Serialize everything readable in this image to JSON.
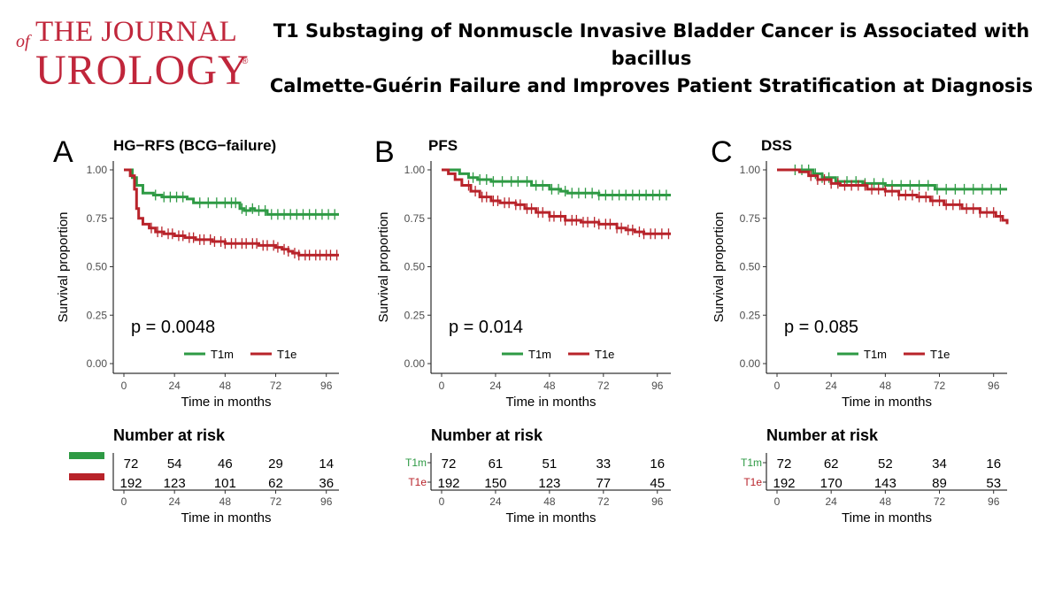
{
  "header": {
    "logo_of": "of",
    "logo_the_journal": "THE JOURNAL",
    "logo_urology": "UROLOGY",
    "logo_reg": "®",
    "title_line1": "T1 Substaging of Nonmuscle Invasive Bladder Cancer is Associated with bacillus",
    "title_line2": "Calmette-Guérin Failure and Improves Patient Stratification at Diagnosis"
  },
  "colors": {
    "T1m": "#2e9a44",
    "T1e": "#b8232a",
    "brand": "#c0263b"
  },
  "chart_data": [
    {
      "type": "line",
      "panel": "A",
      "title": "HG−RFS (BCG−failure)",
      "xlabel": "Time in months",
      "ylabel": "Survival proportion",
      "xlim": [
        0,
        102
      ],
      "ylim": [
        0,
        1
      ],
      "x_ticks": [
        0,
        24,
        48,
        72,
        96
      ],
      "y_ticks": [
        0.0,
        0.25,
        0.5,
        0.75,
        1.0
      ],
      "y_tick_labels": [
        "0.00",
        "0.25",
        "0.50",
        "0.75",
        "1.00"
      ],
      "pvalue": "p = 0.0048",
      "legend": [
        "T1m",
        "T1e"
      ],
      "series": [
        {
          "name": "T1m",
          "steps": [
            [
              0,
              1.0
            ],
            [
              4,
              0.96
            ],
            [
              6,
              0.92
            ],
            [
              9,
              0.88
            ],
            [
              14,
              0.87
            ],
            [
              18,
              0.86
            ],
            [
              30,
              0.85
            ],
            [
              33,
              0.83
            ],
            [
              55,
              0.8
            ],
            [
              57,
              0.79
            ],
            [
              60,
              0.8
            ],
            [
              62,
              0.79
            ],
            [
              68,
              0.77
            ],
            [
              102,
              0.77
            ]
          ],
          "censor_x": [
            15,
            19,
            22,
            25,
            28,
            36,
            40,
            44,
            48,
            51,
            53,
            56,
            58,
            61,
            64,
            67,
            70,
            73,
            76,
            79,
            82,
            85,
            88,
            91,
            94,
            97,
            100
          ]
        },
        {
          "name": "T1e",
          "steps": [
            [
              0,
              1.0
            ],
            [
              3,
              0.97
            ],
            [
              5,
              0.9
            ],
            [
              6,
              0.8
            ],
            [
              7,
              0.75
            ],
            [
              9,
              0.72
            ],
            [
              12,
              0.7
            ],
            [
              15,
              0.68
            ],
            [
              19,
              0.67
            ],
            [
              24,
              0.66
            ],
            [
              29,
              0.65
            ],
            [
              34,
              0.64
            ],
            [
              42,
              0.63
            ],
            [
              48,
              0.62
            ],
            [
              56,
              0.62
            ],
            [
              64,
              0.61
            ],
            [
              72,
              0.6
            ],
            [
              75,
              0.59
            ],
            [
              78,
              0.58
            ],
            [
              80,
              0.57
            ],
            [
              83,
              0.56
            ],
            [
              102,
              0.56
            ]
          ],
          "censor_x": [
            13,
            16,
            18,
            21,
            23,
            26,
            28,
            31,
            33,
            36,
            38,
            41,
            43,
            46,
            48,
            51,
            53,
            56,
            58,
            61,
            63,
            66,
            68,
            71,
            73,
            76,
            78,
            81,
            83,
            86,
            88,
            91,
            93,
            96,
            98,
            101
          ]
        }
      ],
      "risk_table": {
        "title": "Number at risk",
        "xlabel": "Time in months",
        "x_ticks": [
          0,
          24,
          48,
          72,
          96
        ],
        "show_labels": false,
        "rows": [
          {
            "name": "T1m",
            "values": [
              "72",
              "54",
              "46",
              "29",
              "14"
            ]
          },
          {
            "name": "T1e",
            "values": [
              "192",
              "123",
              "101",
              "62",
              "36"
            ]
          }
        ]
      }
    },
    {
      "type": "line",
      "panel": "B",
      "title": "PFS",
      "xlabel": "Time in months",
      "ylabel": "Survival proportion",
      "xlim": [
        0,
        102
      ],
      "ylim": [
        0,
        1
      ],
      "x_ticks": [
        0,
        24,
        48,
        72,
        96
      ],
      "y_ticks": [
        0.0,
        0.25,
        0.5,
        0.75,
        1.0
      ],
      "y_tick_labels": [
        "0.00",
        "0.25",
        "0.50",
        "0.75",
        "1.00"
      ],
      "pvalue": "p = 0.014",
      "legend": [
        "T1m",
        "T1e"
      ],
      "series": [
        {
          "name": "T1m",
          "steps": [
            [
              0,
              1.0
            ],
            [
              8,
              0.98
            ],
            [
              12,
              0.96
            ],
            [
              16,
              0.95
            ],
            [
              22,
              0.94
            ],
            [
              36,
              0.94
            ],
            [
              40,
              0.92
            ],
            [
              48,
              0.9
            ],
            [
              53,
              0.89
            ],
            [
              56,
              0.88
            ],
            [
              70,
              0.87
            ],
            [
              102,
              0.87
            ]
          ],
          "censor_x": [
            14,
            17,
            20,
            23,
            27,
            31,
            34,
            38,
            42,
            45,
            49,
            52,
            55,
            58,
            61,
            64,
            67,
            70,
            73,
            76,
            79,
            82,
            85,
            88,
            91,
            94,
            97,
            100
          ]
        },
        {
          "name": "T1e",
          "steps": [
            [
              0,
              1.0
            ],
            [
              3,
              0.98
            ],
            [
              6,
              0.95
            ],
            [
              9,
              0.92
            ],
            [
              13,
              0.89
            ],
            [
              17,
              0.86
            ],
            [
              22,
              0.84
            ],
            [
              26,
              0.83
            ],
            [
              33,
              0.82
            ],
            [
              37,
              0.8
            ],
            [
              42,
              0.78
            ],
            [
              48,
              0.76
            ],
            [
              55,
              0.74
            ],
            [
              62,
              0.73
            ],
            [
              70,
              0.72
            ],
            [
              78,
              0.7
            ],
            [
              82,
              0.69
            ],
            [
              86,
              0.68
            ],
            [
              90,
              0.67
            ],
            [
              102,
              0.67
            ]
          ],
          "censor_x": [
            12,
            15,
            18,
            20,
            23,
            25,
            28,
            30,
            33,
            35,
            38,
            40,
            43,
            45,
            48,
            50,
            53,
            55,
            58,
            60,
            63,
            65,
            68,
            70,
            73,
            75,
            78,
            80,
            83,
            85,
            88,
            90,
            93,
            95,
            98,
            101
          ]
        }
      ],
      "risk_table": {
        "title": "Number at risk",
        "xlabel": "Time in months",
        "x_ticks": [
          0,
          24,
          48,
          72,
          96
        ],
        "show_labels": true,
        "rows": [
          {
            "name": "T1m",
            "values": [
              "72",
              "61",
              "51",
              "33",
              "16"
            ]
          },
          {
            "name": "T1e",
            "values": [
              "192",
              "150",
              "123",
              "77",
              "45"
            ]
          }
        ]
      }
    },
    {
      "type": "line",
      "panel": "C",
      "title": "DSS",
      "xlabel": "Time in months",
      "ylabel": "Survival proportion",
      "xlim": [
        0,
        102
      ],
      "ylim": [
        0,
        1
      ],
      "x_ticks": [
        0,
        24,
        48,
        72,
        96
      ],
      "y_ticks": [
        0.0,
        0.25,
        0.5,
        0.75,
        1.0
      ],
      "y_tick_labels": [
        "0.00",
        "0.25",
        "0.50",
        "0.75",
        "1.00"
      ],
      "pvalue": "p = 0.085",
      "legend": [
        "T1m",
        "T1e"
      ],
      "series": [
        {
          "name": "T1m",
          "steps": [
            [
              0,
              1.0
            ],
            [
              16,
              0.98
            ],
            [
              20,
              0.96
            ],
            [
              26,
              0.94
            ],
            [
              38,
              0.93
            ],
            [
              48,
              0.92
            ],
            [
              62,
              0.92
            ],
            [
              70,
              0.9
            ],
            [
              102,
              0.9
            ]
          ],
          "censor_x": [
            8,
            11,
            14,
            17,
            20,
            23,
            27,
            31,
            35,
            39,
            43,
            47,
            51,
            55,
            59,
            63,
            67,
            71,
            75,
            79,
            83,
            87,
            91,
            95,
            99
          ]
        },
        {
          "name": "T1e",
          "steps": [
            [
              0,
              1.0
            ],
            [
              10,
              0.99
            ],
            [
              14,
              0.97
            ],
            [
              18,
              0.95
            ],
            [
              24,
              0.93
            ],
            [
              28,
              0.92
            ],
            [
              40,
              0.9
            ],
            [
              48,
              0.89
            ],
            [
              54,
              0.87
            ],
            [
              62,
              0.86
            ],
            [
              68,
              0.84
            ],
            [
              74,
              0.82
            ],
            [
              82,
              0.8
            ],
            [
              90,
              0.78
            ],
            [
              97,
              0.76
            ],
            [
              100,
              0.74
            ],
            [
              102,
              0.72
            ]
          ],
          "censor_x": [
            15,
            18,
            21,
            24,
            27,
            30,
            33,
            36,
            39,
            42,
            45,
            48,
            51,
            54,
            57,
            60,
            63,
            66,
            69,
            72,
            75,
            78,
            81,
            84,
            87,
            90,
            93,
            96,
            99
          ]
        }
      ],
      "risk_table": {
        "title": "Number at risk",
        "xlabel": "Time in months",
        "x_ticks": [
          0,
          24,
          48,
          72,
          96
        ],
        "show_labels": true,
        "rows": [
          {
            "name": "T1m",
            "values": [
              "72",
              "62",
              "52",
              "34",
              "16"
            ]
          },
          {
            "name": "T1e",
            "values": [
              "192",
              "170",
              "143",
              "89",
              "53"
            ]
          }
        ]
      }
    }
  ]
}
